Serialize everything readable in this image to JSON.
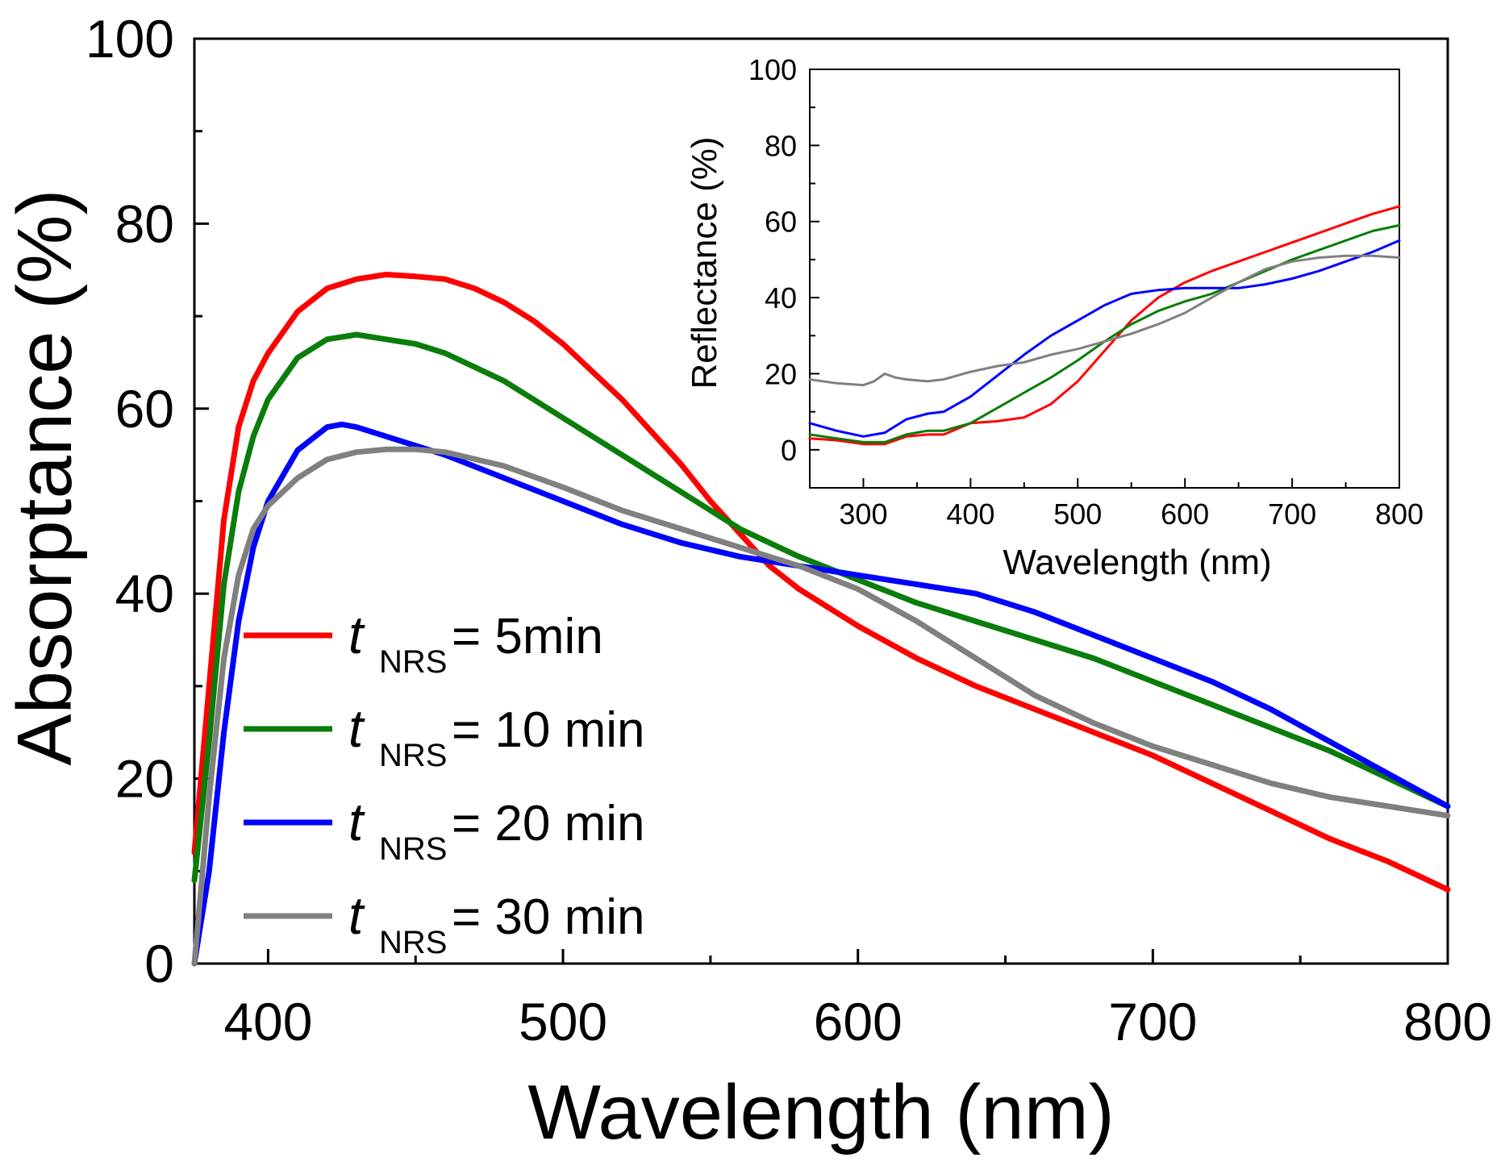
{
  "chart_data": [
    {
      "type": "line",
      "xlabel": "Wavelength (nm)",
      "ylabel": "Absorptance (%)",
      "xlim": [
        375,
        800
      ],
      "ylim": [
        0,
        100
      ],
      "xticks": [
        "400",
        "500",
        "600",
        "700",
        "800"
      ],
      "yticks": [
        "0",
        "20",
        "40",
        "60",
        "80",
        "100"
      ],
      "legend_position": "lower-left",
      "series": [
        {
          "name": "t NRS = 5min",
          "legend": {
            "t": "t",
            "sub": "NRS",
            "text": "= 5min"
          },
          "color": "#ff0000",
          "x": [
            375,
            380,
            385,
            390,
            395,
            400,
            410,
            420,
            430,
            440,
            450,
            460,
            470,
            480,
            490,
            500,
            510,
            520,
            530,
            540,
            550,
            560,
            570,
            580,
            590,
            600,
            620,
            640,
            660,
            680,
            700,
            720,
            740,
            760,
            780,
            800
          ],
          "y": [
            12,
            30,
            48,
            58,
            63,
            66,
            70.5,
            73,
            74,
            74.5,
            74.3,
            74,
            73,
            71.5,
            69.5,
            67,
            64,
            61,
            57.5,
            54,
            50,
            46.5,
            43,
            40.5,
            38.5,
            36.5,
            33,
            30,
            27.5,
            25,
            22.5,
            19.5,
            16.5,
            13.5,
            11,
            8
          ]
        },
        {
          "name": "t NRS = 10 min",
          "legend": {
            "t": "t",
            "sub": "NRS",
            "text": "= 10 min"
          },
          "color": "#0a7d0a",
          "x": [
            375,
            380,
            385,
            390,
            395,
            400,
            410,
            420,
            430,
            440,
            450,
            460,
            470,
            480,
            490,
            500,
            520,
            540,
            560,
            580,
            600,
            620,
            640,
            660,
            680,
            700,
            720,
            740,
            760,
            780,
            800
          ],
          "y": [
            9,
            24,
            41,
            51,
            57,
            61,
            65.5,
            67.5,
            68,
            67.5,
            67,
            66,
            64.5,
            63,
            61,
            59,
            55,
            51,
            47,
            44,
            41.5,
            39,
            37,
            35,
            33,
            30.5,
            28,
            25.5,
            23,
            20,
            17
          ]
        },
        {
          "name": "t NRS = 20 min",
          "legend": {
            "t": "t",
            "sub": "NRS",
            "text": "= 20 min"
          },
          "color": "#0000ff",
          "x": [
            375,
            380,
            385,
            390,
            395,
            400,
            410,
            420,
            425,
            430,
            440,
            450,
            460,
            480,
            500,
            520,
            540,
            560,
            580,
            600,
            620,
            640,
            660,
            680,
            700,
            720,
            740,
            760,
            780,
            800
          ],
          "y": [
            0,
            10,
            25,
            37,
            45,
            50,
            55.5,
            58,
            58.3,
            58,
            57,
            56,
            55,
            52.5,
            50,
            47.5,
            45.5,
            44,
            43,
            42,
            41,
            40,
            38,
            35.5,
            33,
            30.5,
            27.5,
            24,
            20.5,
            17
          ]
        },
        {
          "name": "t NRS = 30 min",
          "legend": {
            "t": "t",
            "sub": "NRS",
            "text": "= 30 min"
          },
          "color": "#808080",
          "x": [
            375,
            380,
            385,
            390,
            395,
            400,
            410,
            420,
            430,
            440,
            450,
            460,
            480,
            500,
            520,
            540,
            560,
            580,
            600,
            620,
            640,
            660,
            680,
            700,
            720,
            740,
            760,
            780,
            800
          ],
          "y": [
            0,
            18,
            33,
            42,
            47,
            49.5,
            52.5,
            54.5,
            55.3,
            55.6,
            55.6,
            55.3,
            53.8,
            51.5,
            49,
            47,
            45,
            43,
            40.5,
            37,
            33,
            29,
            26,
            23.5,
            21.5,
            19.5,
            18,
            17,
            16
          ]
        }
      ]
    },
    {
      "type": "line",
      "xlabel": "Wavelength (nm)",
      "ylabel": "Reflectance (%)",
      "xlim": [
        250,
        800
      ],
      "ylim": [
        -10,
        100
      ],
      "xticks": [
        "300",
        "400",
        "500",
        "600",
        "700",
        "800"
      ],
      "yticks": [
        "0",
        "20",
        "40",
        "60",
        "80",
        "100"
      ],
      "placement": "top-right inset",
      "series": [
        {
          "name": "t NRS = 5min",
          "color": "#ff0000",
          "x": [
            250,
            275,
            300,
            320,
            340,
            360,
            375,
            400,
            425,
            450,
            475,
            500,
            525,
            550,
            575,
            600,
            625,
            650,
            675,
            700,
            725,
            750,
            775,
            800
          ],
          "y": [
            3,
            2.5,
            1.5,
            1.5,
            3.5,
            4,
            4,
            7,
            7.5,
            8.5,
            12,
            18,
            26,
            34,
            40,
            44,
            47,
            49.5,
            52,
            54.5,
            57,
            59.5,
            62,
            64
          ]
        },
        {
          "name": "t NRS = 10 min",
          "color": "#0a7d0a",
          "x": [
            250,
            275,
            300,
            320,
            340,
            360,
            375,
            400,
            425,
            450,
            475,
            500,
            525,
            550,
            575,
            600,
            625,
            650,
            675,
            700,
            725,
            750,
            775,
            800
          ],
          "y": [
            4,
            3,
            2,
            2,
            4,
            5,
            5,
            7,
            11,
            15,
            19,
            23.5,
            28.5,
            33,
            36.5,
            39,
            41,
            44,
            47,
            50,
            52.5,
            55,
            57.5,
            59
          ]
        },
        {
          "name": "t NRS = 20 min",
          "color": "#0000ff",
          "x": [
            250,
            275,
            300,
            320,
            340,
            360,
            375,
            400,
            425,
            450,
            475,
            500,
            525,
            550,
            575,
            600,
            625,
            650,
            675,
            700,
            725,
            750,
            775,
            800
          ],
          "y": [
            7,
            5,
            3.5,
            4.5,
            8,
            9.5,
            10,
            14,
            19.5,
            25,
            30,
            34,
            38,
            41,
            42,
            42.5,
            42.5,
            42.5,
            43.5,
            45,
            47,
            49.5,
            52,
            55
          ]
        },
        {
          "name": "t NRS = 30 min",
          "color": "#808080",
          "x": [
            250,
            275,
            300,
            310,
            320,
            330,
            340,
            360,
            375,
            400,
            425,
            450,
            475,
            500,
            525,
            550,
            575,
            600,
            625,
            650,
            675,
            700,
            725,
            750,
            775,
            800
          ],
          "y": [
            18.5,
            17.5,
            17,
            18,
            20,
            19,
            18.5,
            18,
            18.5,
            20.5,
            22,
            23,
            25,
            26.5,
            28.5,
            30.5,
            33,
            36,
            40,
            44,
            47.5,
            49.5,
            50.5,
            51,
            51,
            50.5
          ]
        }
      ]
    }
  ]
}
